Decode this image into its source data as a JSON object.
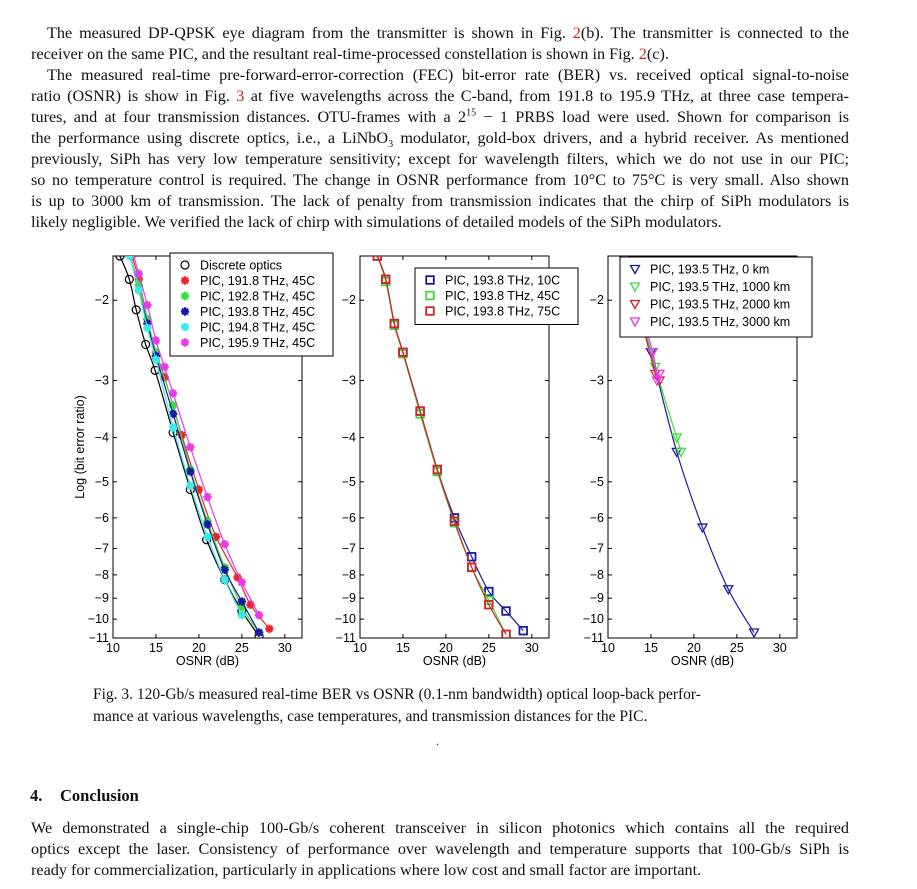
{
  "body_lines": [
    {
      "indent": true,
      "last": false,
      "parts": [
        {
          "t": "The measured DP-QPSK eye diagram from the transmitter is shown in Fig. "
        },
        {
          "t": "2",
          "k": "ref"
        },
        {
          "t": "(b). The transmitter is connected to the"
        }
      ]
    },
    {
      "indent": false,
      "last": true,
      "parts": [
        {
          "t": "receiver on the same PIC, and the resultant real-time-processed constellation is shown in Fig. "
        },
        {
          "t": "2",
          "k": "ref"
        },
        {
          "t": "(c)."
        }
      ]
    },
    {
      "indent": true,
      "last": false,
      "parts": [
        {
          "t": "The measured real-time pre-forward-error-correction (FEC) bit-error rate (BER) vs. received optical signal-to-noise"
        }
      ]
    },
    {
      "indent": false,
      "last": false,
      "parts": [
        {
          "t": "ratio (OSNR) is show in Fig. "
        },
        {
          "t": "3",
          "k": "ref"
        },
        {
          "t": " at five wavelengths across the C-band, from 191.8 to 195.9 THz, at three case tempera-"
        }
      ]
    },
    {
      "indent": false,
      "last": false,
      "parts": [
        {
          "t": "tures, and at four transmission distances. OTU-frames with a 2"
        },
        {
          "t": "15",
          "k": "sup"
        },
        {
          "t": " − 1 PRBS load were used. Shown for comparison is"
        }
      ]
    },
    {
      "indent": false,
      "last": false,
      "parts": [
        {
          "t": "the performance using discrete optics, i.e., a LiNbO"
        },
        {
          "t": "3",
          "k": "sub"
        },
        {
          "t": " modulator, gold-box drivers, and a hybrid receiver. As mentioned"
        }
      ]
    },
    {
      "indent": false,
      "last": false,
      "parts": [
        {
          "t": "previously, SiPh has very low temperature sensitivity; except for wavelength filters, which we do not use in our PIC;"
        }
      ]
    },
    {
      "indent": false,
      "last": false,
      "parts": [
        {
          "t": "so no temperature control is required. The change in OSNR performance from 10°C to 75°C is very small. Also shown"
        }
      ]
    },
    {
      "indent": false,
      "last": false,
      "parts": [
        {
          "t": "is up to 3000 km of transmission. The lack of penalty from transmission indicates that the chirp of SiPh modulators is"
        }
      ]
    },
    {
      "indent": false,
      "last": true,
      "parts": [
        {
          "t": "likely negligible. We verified the lack of chirp with simulations of detailed models of the SiPh modulators."
        }
      ]
    }
  ],
  "caption": {
    "line1": "Fig. 3. 120-Gb/s measured real-time BER vs OSNR (0.1-nm bandwidth) optical loop-back perfor-",
    "line2": "mance at various wavelengths, case temperatures, and transmission distances for the PIC."
  },
  "stray_mark": ".",
  "section": {
    "number": "4.",
    "title": "Conclusion"
  },
  "conclusion_lines": [
    "We demonstrated a single-chip 100-Gb/s coherent transceiver in silicon photonics which contains all the required",
    "optics except the laser. Consistency of performance over wavelength and temperature supports that 100-Gb/s SiPh is",
    "ready for commercialization, particularly in applications where low cost and small factor are important."
  ],
  "chart_data": [
    {
      "type": "scatter",
      "title": "",
      "xlabel": "OSNR (dB)",
      "ylabel": "Log (bit error ratio)",
      "xlim": [
        10,
        32
      ],
      "ylim": [
        -1.6,
        -11
      ],
      "yscale": "log(-log BER)",
      "xticks": [
        10,
        15,
        20,
        25,
        30
      ],
      "yticks": [
        -2,
        -3,
        -4,
        -5,
        -6,
        -7,
        -8,
        -9,
        -10,
        -11
      ],
      "grid": false,
      "fit_lines": true,
      "legend": "top-right",
      "series": [
        {
          "name": "Discrete optics",
          "color": "#000000",
          "marker": "circle",
          "x": [
            10.8,
            11.9,
            12.7,
            13.8,
            14.9,
            17,
            19,
            20.9,
            23,
            25,
            27
          ],
          "y": [
            -1.6,
            -1.8,
            -2.1,
            -2.5,
            -2.85,
            -3.9,
            -5.2,
            -6.7,
            -8.2,
            -9.6,
            -10.9
          ]
        },
        {
          "name": "PIC, 191.8 THz, 45C",
          "color": "#e8262a",
          "marker": "asterisk",
          "x": [
            12.2,
            13,
            14,
            15,
            16,
            18,
            20,
            22,
            24.5,
            26,
            28.2
          ],
          "y": [
            -1.6,
            -1.8,
            -2.2,
            -2.6,
            -2.95,
            -3.95,
            -5.2,
            -6.6,
            -8.1,
            -9.3,
            -10.5
          ]
        },
        {
          "name": "PIC, 192.8 THz, 45C",
          "color": "#3ddc3d",
          "marker": "asterisk",
          "x": [
            12,
            13,
            14,
            15,
            17,
            19,
            21,
            23,
            25,
            27
          ],
          "y": [
            -1.6,
            -1.85,
            -2.2,
            -2.6,
            -3.4,
            -4.7,
            -6.1,
            -7.7,
            -9.4,
            -10.7
          ]
        },
        {
          "name": "PIC, 193.8 THz, 45C",
          "color": "#1a1aa0",
          "marker": "asterisk",
          "x": [
            12,
            13,
            14,
            15,
            17,
            19,
            21,
            23,
            25,
            27
          ],
          "y": [
            -1.6,
            -1.9,
            -2.25,
            -2.65,
            -3.55,
            -4.75,
            -6.2,
            -7.8,
            -9.15,
            -10.7
          ]
        },
        {
          "name": "PIC, 194.8 THz, 45C",
          "color": "#3de8e8",
          "marker": "asterisk",
          "x": [
            12,
            13,
            14,
            15,
            17,
            19,
            21,
            23,
            25
          ],
          "y": [
            -1.6,
            -1.9,
            -2.3,
            -2.7,
            -3.8,
            -5.1,
            -6.6,
            -8.2,
            -9.8
          ]
        },
        {
          "name": "PIC, 195.9 THz, 45C",
          "color": "#e83ae8",
          "marker": "asterisk",
          "x": [
            12.2,
            13,
            14,
            15,
            16,
            17,
            19,
            21,
            23,
            25,
            27
          ],
          "y": [
            -1.55,
            -1.75,
            -2.05,
            -2.45,
            -2.8,
            -3.2,
            -4.2,
            -5.4,
            -6.85,
            -8.3,
            -9.8
          ]
        }
      ]
    },
    {
      "type": "scatter",
      "title": "",
      "xlabel": "OSNR (dB)",
      "ylabel": "",
      "xlim": [
        10,
        32
      ],
      "ylim": [
        -1.6,
        -11
      ],
      "yscale": "log(-log BER)",
      "xticks": [
        10,
        15,
        20,
        25,
        30
      ],
      "yticks": [
        -2,
        -3,
        -4,
        -5,
        -6,
        -7,
        -8,
        -9,
        -10,
        -11
      ],
      "grid": false,
      "fit_lines": true,
      "legend": "top-right",
      "series": [
        {
          "name": "PIC, 193.8 THz, 10C",
          "color": "#1a1aa0",
          "marker": "square",
          "x": [
            12,
            13,
            14,
            15,
            17,
            19,
            21,
            23,
            25,
            27,
            29
          ],
          "y": [
            -1.6,
            -1.8,
            -2.25,
            -2.6,
            -3.5,
            -4.7,
            -6.0,
            -7.3,
            -8.7,
            -9.6,
            -10.6
          ]
        },
        {
          "name": "PIC, 193.8 THz, 45C",
          "color": "#3ddc3d",
          "marker": "square",
          "x": [
            12,
            13,
            14,
            15,
            17,
            19,
            21,
            23,
            25,
            27
          ],
          "y": [
            -1.6,
            -1.82,
            -2.27,
            -2.62,
            -3.55,
            -4.75,
            -6.15,
            -7.7,
            -9.1,
            -10.8
          ]
        },
        {
          "name": "PIC, 193.8 THz, 75C",
          "color": "#d0232a",
          "marker": "square",
          "x": [
            12,
            13,
            14,
            15,
            17,
            19,
            21,
            23,
            25,
            27
          ],
          "y": [
            -1.6,
            -1.8,
            -2.25,
            -2.6,
            -3.5,
            -4.7,
            -6.1,
            -7.7,
            -9.3,
            -10.8
          ]
        }
      ]
    },
    {
      "type": "scatter",
      "title": "",
      "xlabel": "OSNR (dB)",
      "ylabel": "",
      "xlim": [
        10,
        32
      ],
      "ylim": [
        -1.6,
        -11
      ],
      "yscale": "log(-log BER)",
      "xticks": [
        10,
        15,
        20,
        25,
        30
      ],
      "yticks": [
        -2,
        -3,
        -4,
        -5,
        -6,
        -7,
        -8,
        -9,
        -10,
        -11
      ],
      "grid": false,
      "fit_lines": true,
      "legend": "top-right",
      "series": [
        {
          "name": "PIC, 193.5 THz, 0 km",
          "color": "#1a1aa0",
          "marker": "triangle-down",
          "x": [
            12,
            15,
            18,
            21,
            24,
            27
          ],
          "y": [
            -1.6,
            -2.6,
            -4.3,
            -6.3,
            -8.6,
            -10.7
          ]
        },
        {
          "name": "PIC, 193.5 THz, 1000 km",
          "color": "#3ddc3d",
          "marker": "triangle-down",
          "x": [
            12,
            15.5,
            18,
            18.5
          ],
          "y": [
            -1.6,
            -2.8,
            -4.0,
            -4.3
          ]
        },
        {
          "name": "PIC, 193.5 THz, 2000 km",
          "color": "#d0232a",
          "marker": "triangle-down",
          "x": [
            12,
            15.5,
            16
          ],
          "y": [
            -1.6,
            -2.9,
            -3.0
          ]
        },
        {
          "name": "PIC, 193.5 THz, 3000 km",
          "color": "#e83ae8",
          "marker": "triangle-down",
          "x": [
            12,
            15.2,
            15.7,
            16
          ],
          "y": [
            -1.6,
            -2.6,
            -3.0,
            -2.9
          ]
        }
      ]
    }
  ]
}
